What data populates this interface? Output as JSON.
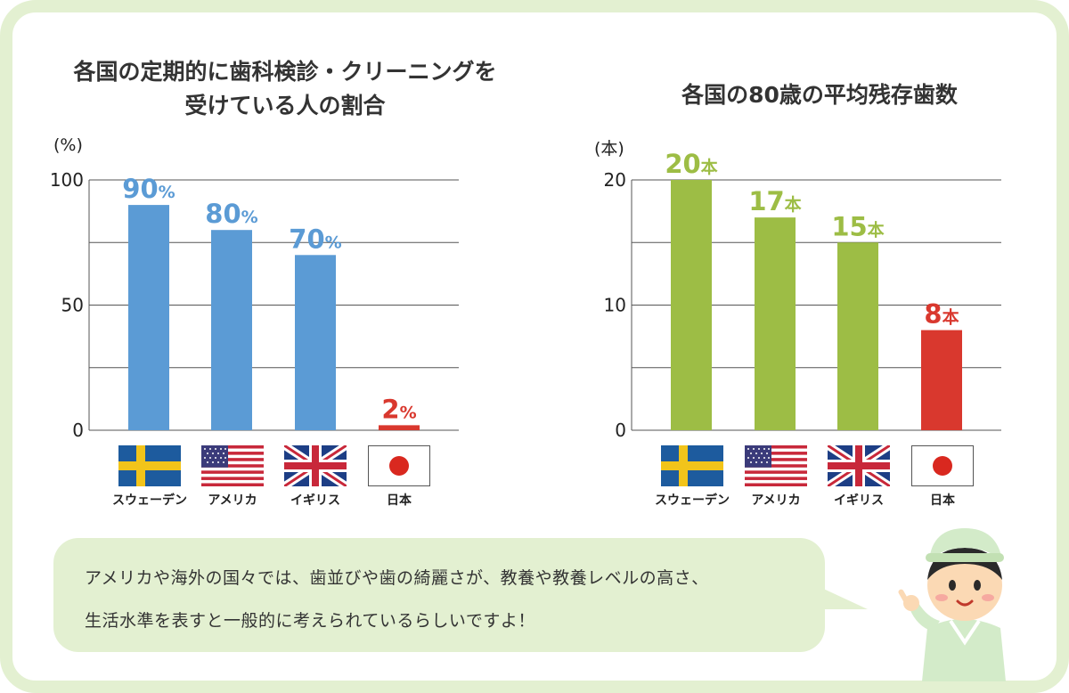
{
  "left_chart": {
    "title_line1": "各国の定期的に歯科検診・クリーニングを",
    "title_line2": "受けている人の割合",
    "unit": "(%)"
  },
  "right_chart": {
    "title": "各国の80歳の平均残存歯数",
    "unit": "(本)"
  },
  "countries": [
    "スウェーデン",
    "アメリカ",
    "イギリス",
    "日本"
  ],
  "chart_data": [
    {
      "type": "bar",
      "title": "各国の定期的に歯科検診・クリーニングを受けている人の割合",
      "ylabel": "(%)",
      "categories": [
        "スウェーデン",
        "アメリカ",
        "イギリス",
        "日本"
      ],
      "values": [
        90,
        80,
        70,
        2
      ],
      "data_labels": [
        "90%",
        "80%",
        "70%",
        "2%"
      ],
      "ylim": [
        0,
        100
      ],
      "yticks": [
        0,
        50,
        100
      ],
      "ytick_labels": [
        "0",
        "50",
        "100"
      ],
      "gridlines": [
        0,
        25,
        50,
        75,
        100
      ],
      "colors": [
        "#5b9bd5",
        "#5b9bd5",
        "#5b9bd5",
        "#d9382e"
      ]
    },
    {
      "type": "bar",
      "title": "各国の80歳の平均残存歯数",
      "ylabel": "(本)",
      "categories": [
        "スウェーデン",
        "アメリカ",
        "イギリス",
        "日本"
      ],
      "values": [
        20,
        17,
        15,
        8
      ],
      "data_labels": [
        "20本",
        "17本",
        "15本",
        "8本"
      ],
      "ylim": [
        0,
        20
      ],
      "yticks": [
        0,
        10,
        20
      ],
      "ytick_labels": [
        "0",
        "10",
        "20"
      ],
      "gridlines": [
        0,
        5,
        10,
        15,
        20
      ],
      "colors": [
        "#9dbd45",
        "#9dbd45",
        "#9dbd45",
        "#d9382e"
      ]
    }
  ],
  "note": {
    "line1": "アメリカや海外の国々では、歯並びや歯の綺麗さが、教養や教養レベルの高さ、",
    "line2": "生活水準を表すと一般的に考えられているらしいですよ！"
  },
  "colors": {
    "frame": "#e3f0d1",
    "blue_bar": "#5b9bd5",
    "green_bar": "#9dbd45",
    "red_bar": "#d9382e"
  },
  "icons": [
    "sweden-flag-icon",
    "usa-flag-icon",
    "uk-flag-icon",
    "japan-flag-icon",
    "nurse-character-icon"
  ]
}
